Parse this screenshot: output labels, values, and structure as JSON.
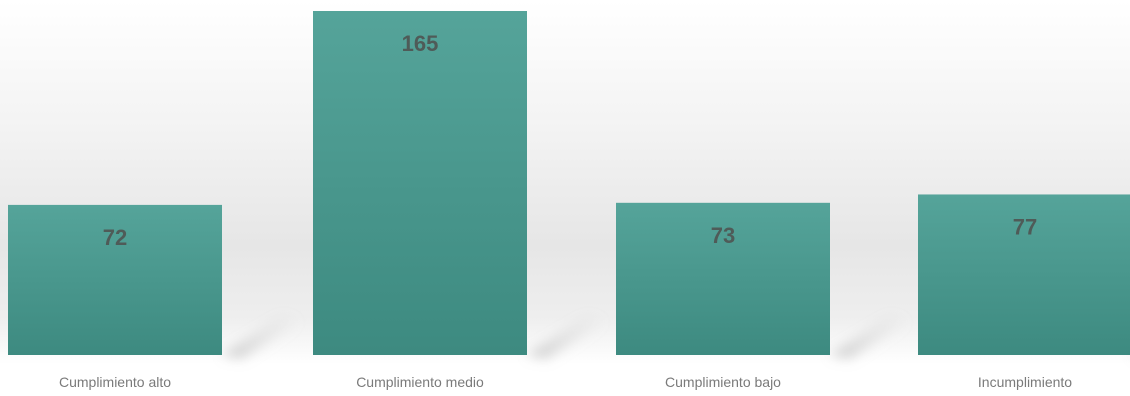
{
  "chart_data": {
    "type": "bar",
    "categories": [
      "Cumplimiento alto",
      "Cumplimiento medio",
      "Cumplimiento bajo",
      "Incumplimiento"
    ],
    "values": [
      72,
      165,
      73,
      77
    ],
    "title": "",
    "xlabel": "",
    "ylabel": "",
    "ylim": [
      0,
      165
    ],
    "grid": false,
    "legend": "none",
    "colors": {
      "bar_top": "#55a49a",
      "bar_bottom": "#3d8a80",
      "label": "#4f5b58",
      "tick": "#7a7a7a"
    }
  }
}
